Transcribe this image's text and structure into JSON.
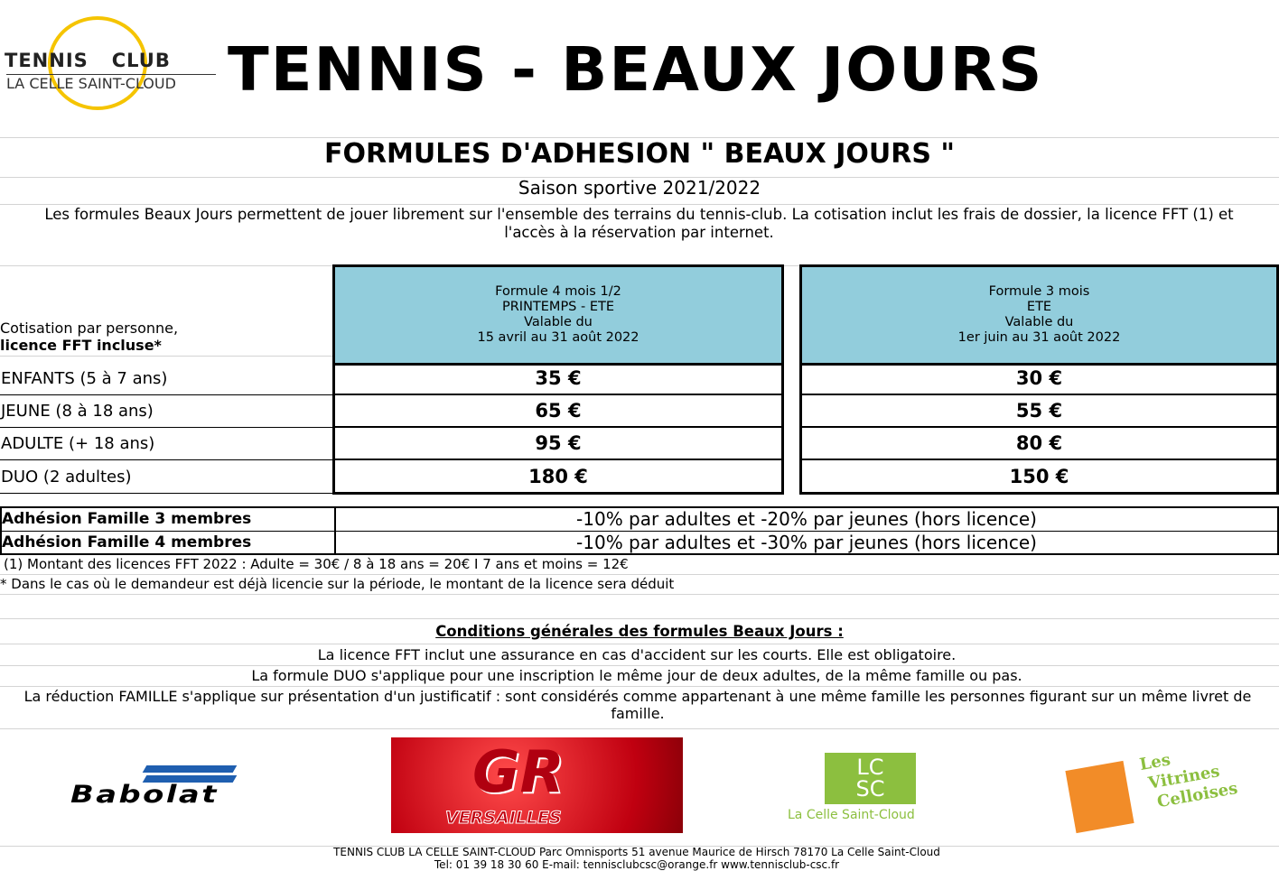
{
  "logo": {
    "line1": "TENNIS",
    "line2": "CLUB",
    "line3": "LA CELLE SAINT-CLOUD"
  },
  "title": "TENNIS - BEAUX JOURS",
  "subtitle": "FORMULES D'ADHESION \" BEAUX JOURS \"",
  "season": "Saison sportive 2021/2022",
  "intro": "Les formules Beaux Jours permettent de jouer librement sur l'ensemble des terrains du tennis-club. La cotisation inclut les frais de dossier, la licence FFT (1) et l'accès à la réservation par internet.",
  "table": {
    "corner_line1": "Cotisation par personne,",
    "corner_line2": "licence  FFT  incluse*",
    "columns": [
      {
        "lines": [
          "Formule 4 mois 1/2",
          "PRINTEMPS - ETE",
          "Valable du",
          "15 avril au 31 août 2022"
        ]
      },
      {
        "lines": [
          "Formule 3 mois",
          "ETE",
          "Valable du",
          "1er juin au 31 août 2022"
        ]
      }
    ],
    "rows": [
      {
        "label": "ENFANTS (5 à 7 ans)",
        "values": [
          "35 €",
          "30 €"
        ]
      },
      {
        "label": "JEUNE (8 à 18 ans)",
        "values": [
          "65 €",
          "55 €"
        ]
      },
      {
        "label": "ADULTE (+ 18 ans)",
        "values": [
          "95 €",
          "80 €"
        ]
      },
      {
        "label": "DUO (2 adultes)",
        "values": [
          "180 €",
          "150 €"
        ]
      }
    ]
  },
  "family": [
    {
      "label": "Adhésion Famille 3 membres",
      "value": "-10% par adultes et -20% par jeunes (hors licence)"
    },
    {
      "label": "Adhésion Famille 4 membres",
      "value": "-10% par adultes et -30% par jeunes (hors licence)"
    }
  ],
  "notes": [
    "(1) Montant des licences FFT 2022  : Adulte = 30€  / 8 à 18 ans = 20€ I 7 ans et moins = 12€",
    "* Dans le cas où le demandeur est déjà licencie sur la période, le montant de la licence sera déduit"
  ],
  "conditions": {
    "title": "Conditions générales des formules Beaux Jours :",
    "lines": [
      "La licence FFT inclut une assurance en cas d'accident sur les courts. Elle est obligatoire.",
      "La formule DUO s'applique pour une inscription le même jour de deux adultes, de la même famille ou pas.",
      "La réduction FAMILLE s'applique sur présentation d'un justificatif : sont considérés comme appartenant à une même famille les personnes figurant sur un même livret de famille."
    ]
  },
  "sponsors": {
    "babolat": "Babolat",
    "gr": "VERSAILLES",
    "lcsc_mark": "LC SC",
    "lcsc": "La Celle Saint-Cloud",
    "vitrines": [
      "Les",
      "Vitrines",
      "Celloises"
    ]
  },
  "footer": {
    "line1": "TENNIS CLUB LA CELLE SAINT-CLOUD   Parc Omnisports  51 avenue Maurice de Hirsch    78170 La Celle Saint-Cloud",
    "line2": "Tel: 01 39 18 30 60      E-mail: tennisclubcsc@orange.fr      www.tennisclub-csc.fr"
  },
  "colors": {
    "header_blue": "#92cddc",
    "logo_yellow": "#f5c400",
    "lcsc_green": "#8cbf3f",
    "vitrines_orange": "#f28c28",
    "gr_red": "#e0141b",
    "babolat_blue": "#1f5fb0"
  }
}
